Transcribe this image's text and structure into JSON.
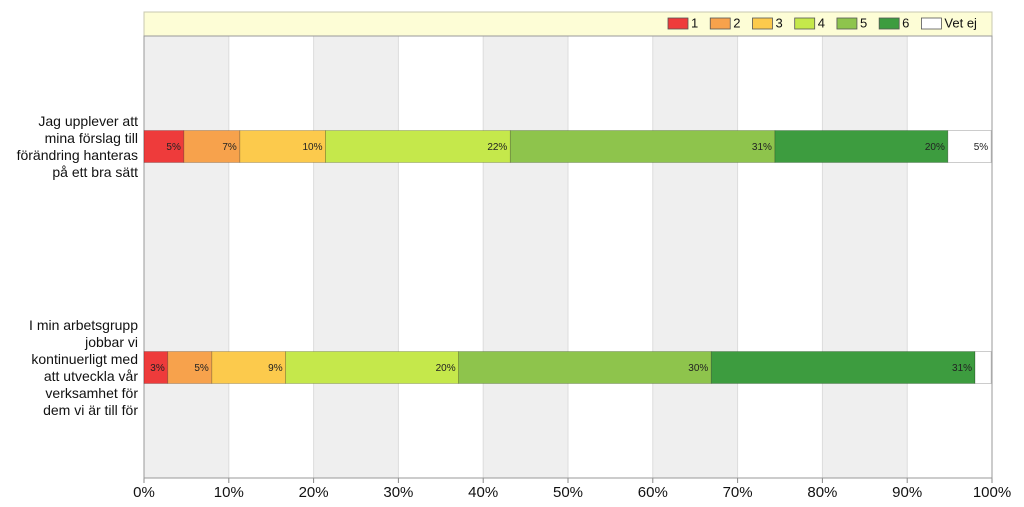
{
  "chart_data": {
    "type": "stacked-bar-horizontal",
    "categories": [
      "Jag upplever att\nmina förslag till\nförändring hanteras\npå ett bra sätt",
      "I min arbetsgrupp\njobbar vi\nkontinuerligt med\natt utveckla vår\nverksamhet för\ndem vi är till för"
    ],
    "series": [
      {
        "name": "1",
        "color": "#ee3b3b",
        "values": [
          4.7,
          2.8
        ],
        "value_labels": [
          "5%",
          "3%"
        ]
      },
      {
        "name": "2",
        "color": "#f7a24c",
        "values": [
          6.6,
          5.2
        ],
        "value_labels": [
          "7%",
          "5%"
        ]
      },
      {
        "name": "3",
        "color": "#fcca4c",
        "values": [
          10.1,
          8.7
        ],
        "value_labels": [
          "10%",
          "9%"
        ]
      },
      {
        "name": "4",
        "color": "#c5e84b",
        "values": [
          21.8,
          20.4
        ],
        "value_labels": [
          "22%",
          "20%"
        ]
      },
      {
        "name": "5",
        "color": "#8ec44c",
        "values": [
          31.2,
          29.8
        ],
        "value_labels": [
          "31%",
          "30%"
        ]
      },
      {
        "name": "6",
        "color": "#3d9c3f",
        "values": [
          20.4,
          31.1
        ],
        "value_labels": [
          "20%",
          "31%"
        ]
      },
      {
        "name": "Vet ej",
        "color": "#ffffff",
        "values": [
          5.1,
          1.9
        ],
        "value_labels": [
          "5%",
          null
        ]
      }
    ],
    "xlim": [
      0,
      100
    ],
    "xticks": [
      {
        "value": 0,
        "label": "0%"
      },
      {
        "value": 10,
        "label": "10%"
      },
      {
        "value": 20,
        "label": "20%"
      },
      {
        "value": 30,
        "label": "30%"
      },
      {
        "value": 40,
        "label": "40%"
      },
      {
        "value": 50,
        "label": "50%"
      },
      {
        "value": 60,
        "label": "60%"
      },
      {
        "value": 70,
        "label": "70%"
      },
      {
        "value": 80,
        "label": "80%"
      },
      {
        "value": 90,
        "label": "90%"
      },
      {
        "value": 100,
        "label": "100%"
      }
    ],
    "grid": true,
    "legend": "top-right"
  }
}
